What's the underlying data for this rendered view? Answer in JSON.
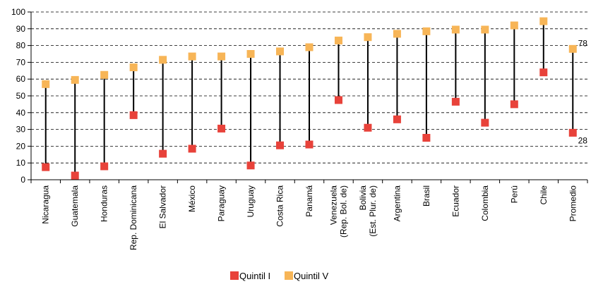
{
  "chart_data": {
    "type": "dumbbell",
    "title": "",
    "xlabel": "",
    "ylabel": "",
    "ylim": [
      0,
      100
    ],
    "yticks": [
      0,
      10,
      20,
      30,
      40,
      50,
      60,
      70,
      80,
      90,
      100
    ],
    "grid": "horizontal dashed",
    "legend_position": "bottom-center",
    "categories": [
      [
        "Nicaragua"
      ],
      [
        "Guatemala"
      ],
      [
        "Honduras"
      ],
      [
        "Rep. Dominicana"
      ],
      [
        "El Salvador"
      ],
      [
        "México"
      ],
      [
        "Paraguay"
      ],
      [
        "Uruguay"
      ],
      [
        "Costa Rica"
      ],
      [
        "Panamá"
      ],
      [
        "Venezuela",
        "(Rep. Bol. de)"
      ],
      [
        "Bolivia",
        "(Est. Plur. de)"
      ],
      [
        "Argentina"
      ],
      [
        "Brasil"
      ],
      [
        "Ecuador"
      ],
      [
        "Colombia"
      ],
      [
        "Perú"
      ],
      [
        "Chile"
      ],
      [
        "Promedio"
      ]
    ],
    "series": [
      {
        "name": "Quintil I",
        "color": "#e8423a",
        "values": [
          7.5,
          2.5,
          8,
          38.5,
          15.5,
          18.5,
          30.5,
          8.5,
          20.5,
          21,
          47.5,
          31,
          36,
          25,
          46.5,
          34,
          45,
          64,
          28
        ]
      },
      {
        "name": "Quintil V",
        "color": "#f7b557",
        "values": [
          57,
          59.5,
          62.5,
          67,
          71.5,
          73.5,
          73.5,
          75,
          76.5,
          79,
          83,
          85,
          87,
          88.5,
          89.5,
          89.5,
          92,
          94.5,
          78
        ]
      }
    ],
    "data_labels": [
      {
        "category_index": 18,
        "series": "Quintil V",
        "text": "78"
      },
      {
        "category_index": 18,
        "series": "Quintil I",
        "text": "28"
      }
    ],
    "connector_color": "#000000"
  }
}
